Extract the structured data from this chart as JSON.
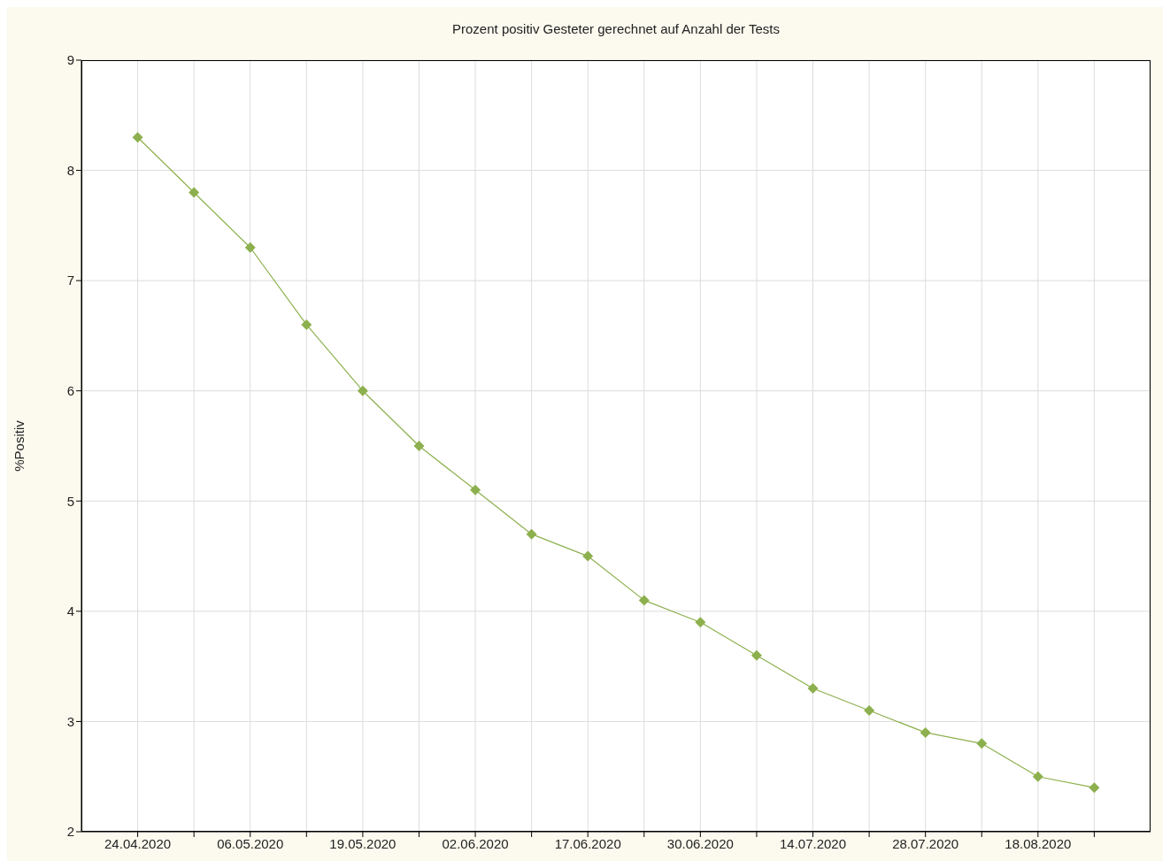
{
  "chart_data": {
    "type": "line",
    "title": "Prozent positiv Gesteter gerechnet auf Anzahl der Tests",
    "ylabel": "%Positiv",
    "categories": [
      "24.04.2020",
      null,
      "06.05.2020",
      null,
      "19.05.2020",
      null,
      "02.06.2020",
      null,
      "17.06.2020",
      null,
      "30.06.2020",
      null,
      "14.07.2020",
      null,
      "28.07.2020",
      null,
      "18.08.2020",
      null
    ],
    "series": [
      {
        "color": "#8db04e",
        "values": [
          8.3,
          7.8,
          7.3,
          6.6,
          6.0,
          5.5,
          5.1,
          4.7,
          4.5,
          4.1,
          3.9,
          3.6,
          3.3,
          3.1,
          2.9,
          2.8,
          2.5,
          2.4
        ]
      }
    ],
    "ylim": [
      2,
      9
    ],
    "yticks": [
      2,
      3,
      4,
      5,
      6,
      7,
      8,
      9
    ],
    "grid": true,
    "marker": "diamond",
    "legend": false
  }
}
